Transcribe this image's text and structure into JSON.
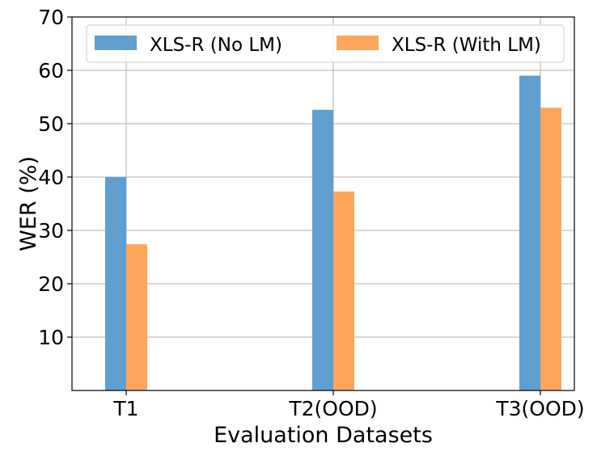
{
  "chart_data": {
    "type": "bar",
    "title": "",
    "xlabel": "Evaluation Datasets",
    "ylabel": "WER (%)",
    "categories": [
      "T1",
      "T2(OOD)",
      "T3(OOD)"
    ],
    "series": [
      {
        "name": "XLS-R (No LM)",
        "values": [
          40.0,
          52.6,
          59.0
        ],
        "color": "#5f9ecf"
      },
      {
        "name": "XLS-R (With LM)",
        "values": [
          27.4,
          37.3,
          53.0
        ],
        "color": "#fda55a"
      }
    ],
    "ylim": [
      0,
      70
    ],
    "yticks": [
      10,
      20,
      30,
      40,
      50,
      60,
      70
    ],
    "grid": true,
    "legend_position": "top"
  }
}
